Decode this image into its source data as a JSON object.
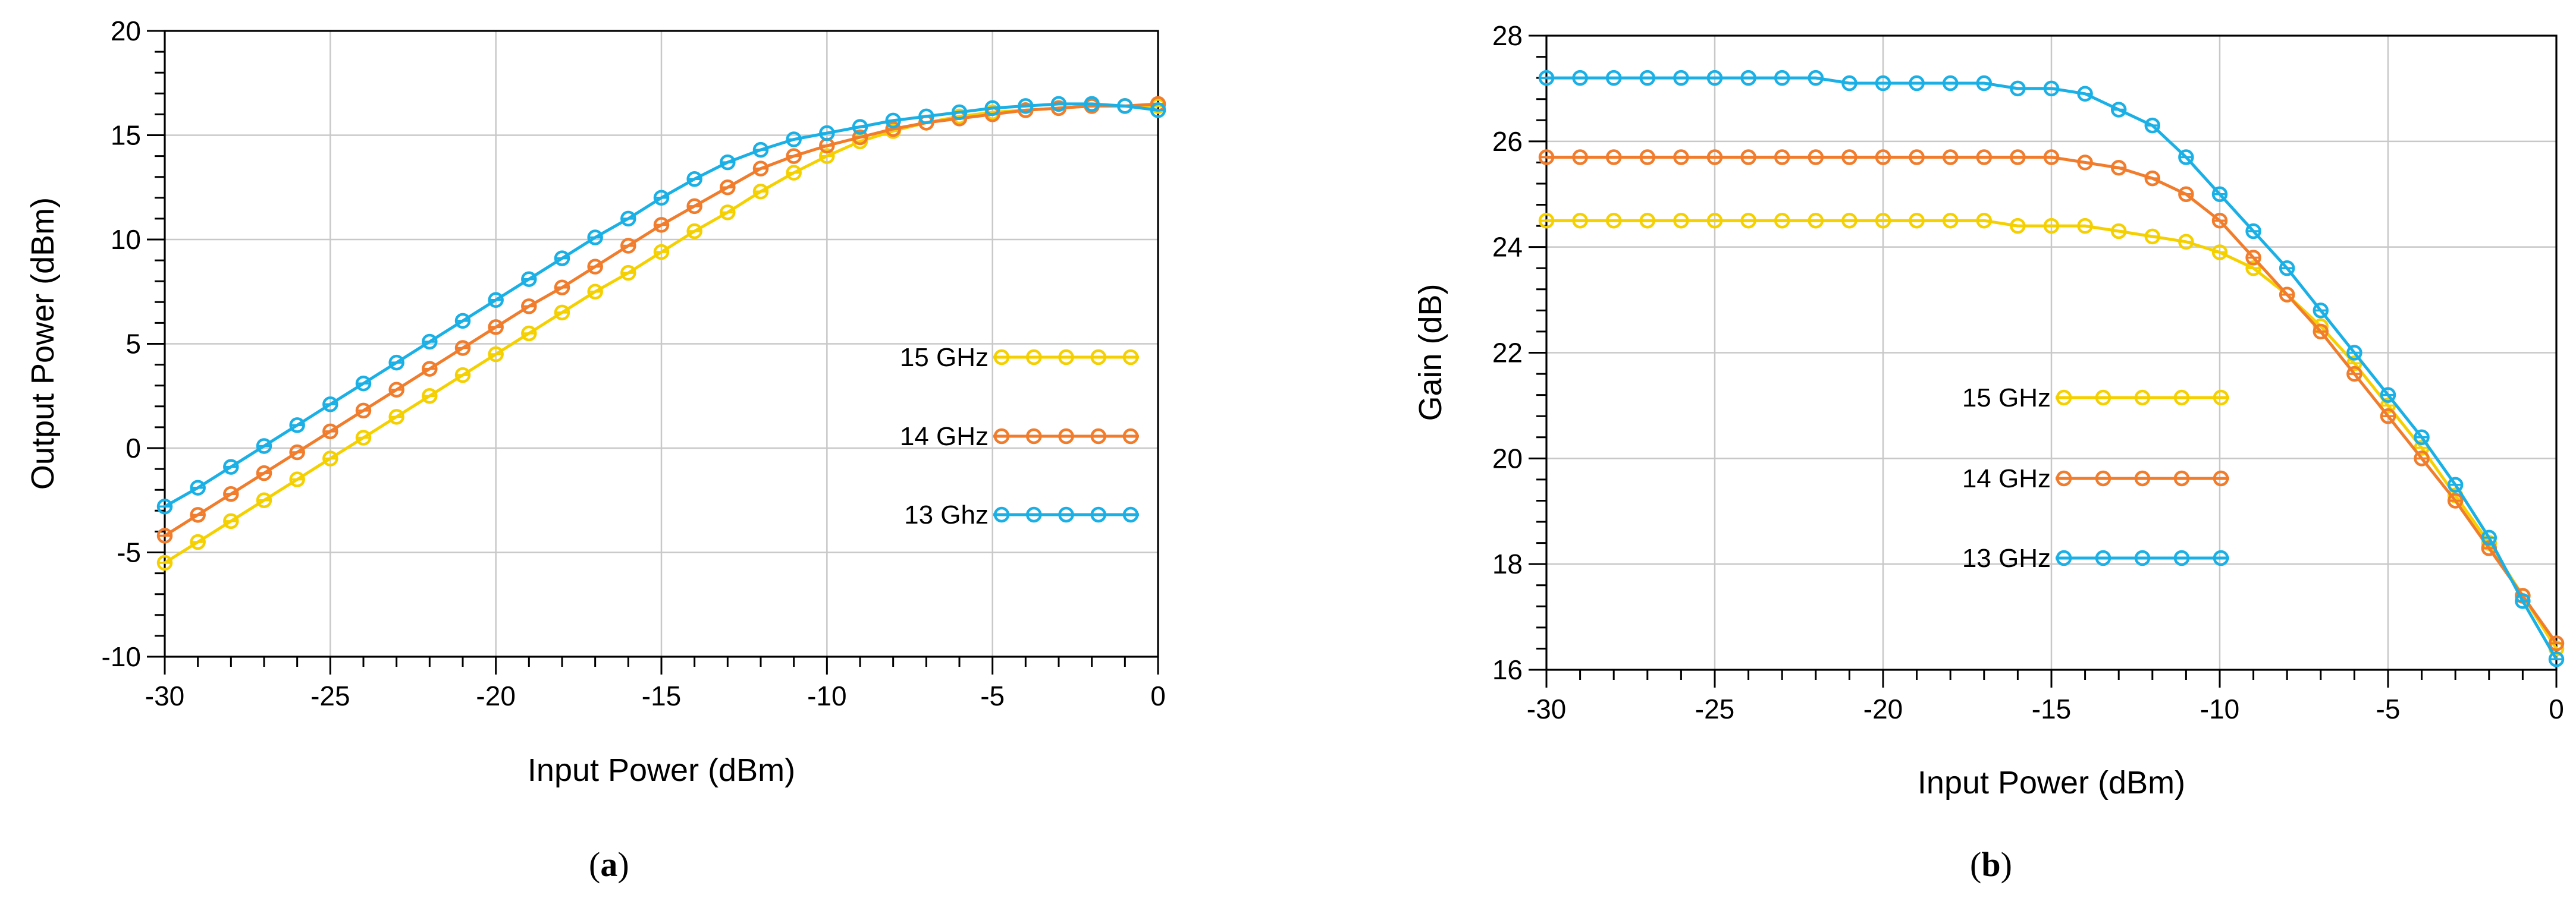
{
  "chart_data": [
    {
      "id": "a",
      "panel_label_open": "(",
      "panel_label_letter": "a",
      "panel_label_close": ")",
      "type": "line",
      "xlabel": "Input Power (dBm)",
      "ylabel": "Output Power (dBm)",
      "xlim": [
        -30,
        0
      ],
      "ylim": [
        -10,
        20
      ],
      "xticks": [
        -30,
        -25,
        -20,
        -15,
        -10,
        -5,
        0
      ],
      "yticks": [
        -10,
        -5,
        0,
        5,
        10,
        15,
        20
      ],
      "grid": true,
      "legend_position": "center-right",
      "x": [
        -30,
        -29,
        -28,
        -27,
        -26,
        -25,
        -24,
        -23,
        -22,
        -21,
        -20,
        -19,
        -18,
        -17,
        -16,
        -15,
        -14,
        -13,
        -12,
        -11,
        -10,
        -9,
        -8,
        -7,
        -6,
        -5,
        -4,
        -3,
        -2,
        -1,
        0
      ],
      "series": [
        {
          "name": "15 GHz",
          "color": "#f5d000",
          "values": [
            -5.5,
            -4.5,
            -3.5,
            -2.5,
            -1.5,
            -0.5,
            0.5,
            1.5,
            2.5,
            3.5,
            4.5,
            5.5,
            6.5,
            7.5,
            8.4,
            9.4,
            10.4,
            11.3,
            12.3,
            13.2,
            14.0,
            14.7,
            15.2,
            15.6,
            15.9,
            16.1,
            16.2,
            16.3,
            16.4,
            16.4,
            16.4
          ]
        },
        {
          "name": "14 GHz",
          "color": "#f07c2c",
          "values": [
            -4.2,
            -3.2,
            -2.2,
            -1.2,
            -0.2,
            0.8,
            1.8,
            2.8,
            3.8,
            4.8,
            5.8,
            6.8,
            7.7,
            8.7,
            9.7,
            10.7,
            11.6,
            12.5,
            13.4,
            14.0,
            14.5,
            14.9,
            15.3,
            15.6,
            15.8,
            16.0,
            16.2,
            16.3,
            16.4,
            16.4,
            16.5
          ]
        },
        {
          "name": "13 Ghz",
          "color": "#1ab0e6",
          "values": [
            -2.8,
            -1.9,
            -0.9,
            0.1,
            1.1,
            2.1,
            3.1,
            4.1,
            5.1,
            6.1,
            7.1,
            8.1,
            9.1,
            10.1,
            11.0,
            12.0,
            12.9,
            13.7,
            14.3,
            14.8,
            15.1,
            15.4,
            15.7,
            15.9,
            16.1,
            16.3,
            16.4,
            16.5,
            16.5,
            16.4,
            16.2
          ]
        }
      ]
    },
    {
      "id": "b",
      "panel_label_open": "(",
      "panel_label_letter": "b",
      "panel_label_close": ")",
      "type": "line",
      "xlabel": "Input Power (dBm)",
      "ylabel": "Gain (dB)",
      "xlim": [
        -30,
        0
      ],
      "ylim": [
        16,
        28
      ],
      "xticks": [
        -30,
        -25,
        -20,
        -15,
        -10,
        -5,
        0
      ],
      "yticks": [
        16,
        18,
        20,
        22,
        24,
        26,
        28
      ],
      "grid": true,
      "legend_position": "center-left",
      "x": [
        -30,
        -29,
        -28,
        -27,
        -26,
        -25,
        -24,
        -23,
        -22,
        -21,
        -20,
        -19,
        -18,
        -17,
        -16,
        -15,
        -14,
        -13,
        -12,
        -11,
        -10,
        -9,
        -8,
        -7,
        -6,
        -5,
        -4,
        -3,
        -2,
        -1,
        0
      ],
      "series": [
        {
          "name": "15 GHz",
          "color": "#f5d000",
          "values": [
            24.5,
            24.5,
            24.5,
            24.5,
            24.5,
            24.5,
            24.5,
            24.5,
            24.5,
            24.5,
            24.5,
            24.5,
            24.5,
            24.5,
            24.4,
            24.4,
            24.4,
            24.3,
            24.2,
            24.1,
            23.9,
            23.6,
            23.1,
            22.5,
            21.8,
            21.0,
            20.2,
            19.3,
            18.4,
            17.4,
            16.4
          ]
        },
        {
          "name": "14 GHz",
          "color": "#f07c2c",
          "values": [
            25.7,
            25.7,
            25.7,
            25.7,
            25.7,
            25.7,
            25.7,
            25.7,
            25.7,
            25.7,
            25.7,
            25.7,
            25.7,
            25.7,
            25.7,
            25.7,
            25.6,
            25.5,
            25.3,
            25.0,
            24.5,
            23.8,
            23.1,
            22.4,
            21.6,
            20.8,
            20.0,
            19.2,
            18.3,
            17.4,
            16.5
          ]
        },
        {
          "name": "13 GHz",
          "color": "#1ab0e6",
          "values": [
            27.2,
            27.2,
            27.2,
            27.2,
            27.2,
            27.2,
            27.2,
            27.2,
            27.2,
            27.1,
            27.1,
            27.1,
            27.1,
            27.1,
            27.0,
            27.0,
            26.9,
            26.6,
            26.3,
            25.7,
            25.0,
            24.3,
            23.6,
            22.8,
            22.0,
            21.2,
            20.4,
            19.5,
            18.5,
            17.3,
            16.2
          ]
        }
      ]
    }
  ]
}
